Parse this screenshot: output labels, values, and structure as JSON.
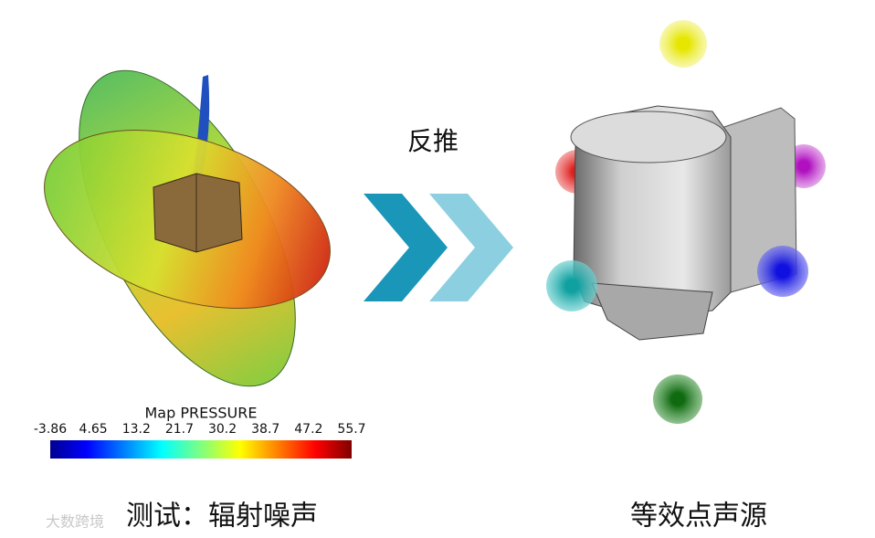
{
  "caption": "反推",
  "left": {
    "label": "测试：辐射噪声",
    "colorbar": {
      "title": "Map PRESSURE",
      "ticks": [
        "-3.86",
        "4.65",
        "13.2",
        "21.7",
        "30.2",
        "38.7",
        "47.2",
        "55.7"
      ]
    }
  },
  "right": {
    "label": "等效点声源"
  },
  "watermark": "大数跨境"
}
